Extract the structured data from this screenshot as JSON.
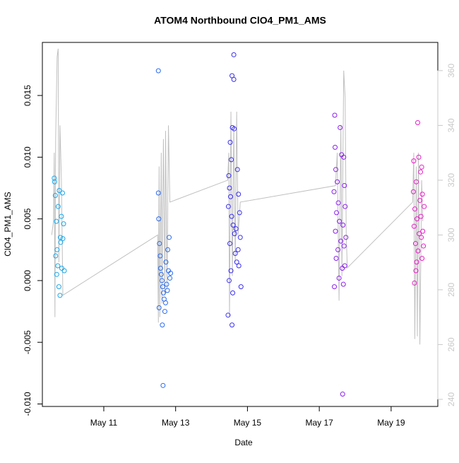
{
  "chart_data": {
    "type": "scatter",
    "title": "ATOM4 Northbound ClO4_PM1_AMS",
    "x_label": "Date",
    "y_label": "ClO4_PM1_AMS",
    "xlim": [
      9.29,
      20.3
    ],
    "xticks": [
      {
        "value": 11,
        "label": "May 11"
      },
      {
        "value": 13,
        "label": "May 13"
      },
      {
        "value": 15,
        "label": "May 15"
      },
      {
        "value": 17,
        "label": "May 17"
      },
      {
        "value": 19,
        "label": "May 19"
      }
    ],
    "ylim": [
      -0.0102,
      0.0193
    ],
    "yticks": [
      {
        "value": -0.01,
        "label": "-0.010"
      },
      {
        "value": -0.005,
        "label": "-0.005"
      },
      {
        "value": 0,
        "label": "0.000"
      },
      {
        "value": 0.005,
        "label": "0.005"
      },
      {
        "value": 0.01,
        "label": "0.010"
      },
      {
        "value": 0.015,
        "label": "0.015"
      }
    ],
    "y2lim": [
      237.4,
      370.3
    ],
    "y2ticks": [
      240,
      260,
      280,
      300,
      320,
      340,
      360
    ],
    "y2_color": "#c8c8c8",
    "series": [
      {
        "color": "#1aa6ea",
        "x": [
          9.62,
          9.65,
          9.68,
          9.7,
          9.72,
          9.75,
          9.78,
          9.8,
          9.82,
          9.85,
          9.88,
          9.63,
          9.66,
          9.69,
          9.73,
          9.76,
          9.79,
          9.83,
          9.86,
          9.9
        ],
        "values": [
          0.0083,
          0.0069,
          0.0048,
          0.0025,
          0.0012,
          -0.0005,
          -0.0012,
          0.0031,
          0.0052,
          0.0071,
          0.0046,
          0.008,
          0.002,
          0.0005,
          0.006,
          0.0073,
          0.0035,
          0.001,
          0.0034,
          0.0008
        ]
      },
      {
        "color": "#2a6cf0",
        "x": [
          12.52,
          12.52,
          12.53,
          12.55,
          12.57,
          12.58,
          12.6,
          12.62,
          12.64,
          12.66,
          12.68,
          12.54,
          12.7,
          12.63,
          12.65,
          12.82,
          12.78,
          12.8,
          12.75,
          12.84,
          12.73,
          12.72,
          12.86,
          12.77
        ],
        "values": [
          0.017,
          0.0071,
          0.005,
          0.003,
          0.002,
          0.001,
          0.0005,
          0.0,
          -0.0005,
          -0.001,
          -0.0015,
          -0.0022,
          -0.0025,
          -0.0036,
          -0.0085,
          0.0035,
          0.0025,
          0.0008,
          -0.0003,
          0.0002,
          0.0015,
          -0.0018,
          0.0006,
          -0.0008
        ]
      },
      {
        "color": "#3a2ef0",
        "x": [
          14.62,
          14.57,
          14.62,
          14.58,
          14.52,
          14.55,
          14.48,
          14.5,
          14.53,
          14.47,
          14.56,
          14.6,
          14.64,
          14.51,
          14.66,
          14.7,
          14.54,
          14.49,
          14.59,
          14.46,
          14.57,
          14.63,
          14.72,
          14.75,
          14.78,
          14.68,
          14.8,
          14.74,
          14.76,
          14.82
        ],
        "values": [
          0.0183,
          0.0166,
          0.0163,
          0.0124,
          0.0112,
          0.0098,
          0.0085,
          0.0075,
          0.0068,
          0.006,
          0.0052,
          0.0045,
          0.0038,
          0.003,
          0.0022,
          0.0015,
          0.0008,
          0.0,
          -0.001,
          -0.0028,
          -0.0036,
          0.0123,
          0.009,
          0.007,
          0.0055,
          0.0042,
          0.0035,
          0.0025,
          0.0012,
          -0.0005
        ]
      },
      {
        "color": "#8a1ef0",
        "x": [
          17.43,
          17.58,
          17.44,
          17.62,
          17.46,
          17.5,
          17.41,
          17.53,
          17.48,
          17.56,
          17.45,
          17.6,
          17.52,
          17.47,
          17.64,
          17.55,
          17.42,
          17.65,
          17.68,
          17.7,
          17.72,
          17.66,
          17.74,
          17.69,
          17.71,
          17.67
        ],
        "values": [
          0.0134,
          0.0124,
          0.0108,
          0.0102,
          0.009,
          0.008,
          0.0072,
          0.0063,
          0.0055,
          0.0048,
          0.004,
          0.0032,
          0.0025,
          0.0018,
          0.001,
          0.0002,
          -0.0005,
          -0.0092,
          0.01,
          0.0077,
          0.006,
          0.0045,
          0.0035,
          0.0028,
          0.0012,
          -0.0003
        ]
      },
      {
        "color": "#e81ec8",
        "x": [
          19.74,
          19.77,
          19.63,
          19.82,
          19.7,
          19.62,
          19.8,
          19.66,
          19.72,
          19.64,
          19.78,
          19.68,
          19.75,
          19.71,
          19.69,
          19.65,
          19.85,
          19.87,
          19.83,
          19.88,
          19.9,
          19.86,
          19.92,
          19.84
        ],
        "values": [
          0.0128,
          0.01,
          0.0097,
          0.0088,
          0.008,
          0.0072,
          0.0065,
          0.0058,
          0.005,
          0.0044,
          0.0038,
          0.003,
          0.0024,
          0.0015,
          0.0008,
          -0.0002,
          0.0092,
          0.007,
          0.0052,
          0.004,
          0.0028,
          0.0018,
          0.006,
          0.0035
        ]
      },
      {
        "type": "line",
        "axis": "y2",
        "color": "#c0c0c0",
        "x": [
          9.55,
          9.6,
          9.62,
          9.64,
          9.66,
          9.7,
          9.73,
          9.75,
          9.78,
          9.82,
          9.84,
          9.86,
          12.5,
          12.52,
          12.54,
          12.56,
          12.6,
          12.62,
          12.66,
          12.7,
          12.72,
          12.76,
          12.8,
          12.84,
          14.45,
          14.48,
          14.5,
          14.54,
          14.58,
          14.62,
          14.66,
          14.7,
          14.74,
          14.8,
          17.45,
          17.5,
          17.55,
          17.6,
          17.63,
          17.68,
          17.72,
          17.75,
          17.78,
          19.6,
          19.63,
          19.66,
          19.7,
          19.73,
          19.76,
          19.8,
          19.85,
          19.88
        ],
        "values": [
          300,
          305,
          330,
          270,
          335,
          365,
          368,
          290,
          340,
          320,
          300,
          278,
          300,
          268,
          325,
          270,
          330,
          275,
          335,
          278,
          338,
          280,
          340,
          312,
          320,
          330,
          270,
          345,
          285,
          340,
          290,
          345,
          300,
          312,
          318,
          330,
          276,
          340,
          285,
          360,
          350,
          300,
          288,
          312,
          330,
          262,
          325,
          263,
          330,
          260,
          320,
          305
        ]
      }
    ]
  }
}
